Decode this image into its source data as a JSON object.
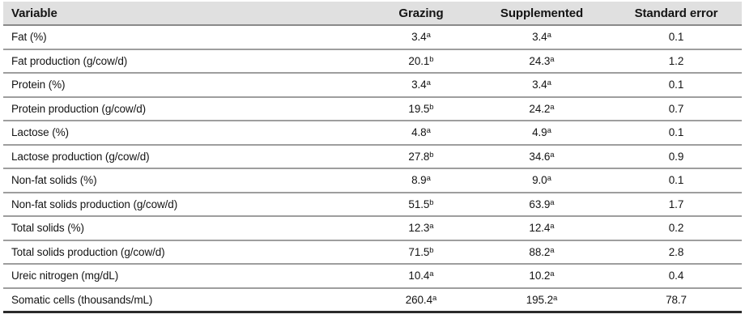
{
  "colors": {
    "header_background": "#e0e0e0",
    "header_border": "#8a8a8a",
    "row_border": "#9e9e9e",
    "table_bottom_border": "#2b2b2b",
    "text": "#141414"
  },
  "chart_data": {
    "type": "table",
    "columns": [
      "Variable",
      "Grazing",
      "Supplemented",
      "Standard error"
    ],
    "rows": [
      {
        "variable": "Fat (%)",
        "grazing": "3.4",
        "grazing_note": "a",
        "supplemented": "3.4",
        "supplemented_note": "a",
        "standard_error": "0.1"
      },
      {
        "variable": "Fat production (g/cow/d)",
        "grazing": "20.1",
        "grazing_note": "b",
        "supplemented": "24.3",
        "supplemented_note": "a",
        "standard_error": "1.2"
      },
      {
        "variable": "Protein (%)",
        "grazing": "3.4",
        "grazing_note": "a",
        "supplemented": "3.4",
        "supplemented_note": "a",
        "standard_error": "0.1"
      },
      {
        "variable": "Protein production (g/cow/d)",
        "grazing": "19.5",
        "grazing_note": "b",
        "supplemented": "24.2",
        "supplemented_note": "a",
        "standard_error": "0.7"
      },
      {
        "variable": "Lactose (%)",
        "grazing": "4.8",
        "grazing_note": "a",
        "supplemented": "4.9",
        "supplemented_note": "a",
        "standard_error": "0.1"
      },
      {
        "variable": "Lactose production (g/cow/d)",
        "grazing": "27.8",
        "grazing_note": "b",
        "supplemented": "34.6",
        "supplemented_note": "a",
        "standard_error": "0.9"
      },
      {
        "variable": "Non-fat solids (%)",
        "grazing": "8.9",
        "grazing_note": "a",
        "supplemented": "9.0",
        "supplemented_note": "a",
        "standard_error": "0.1"
      },
      {
        "variable": "Non-fat solids production (g/cow/d)",
        "grazing": "51.5",
        "grazing_note": "b",
        "supplemented": "63.9",
        "supplemented_note": "a",
        "standard_error": "1.7"
      },
      {
        "variable": "Total solids (%)",
        "grazing": "12.3",
        "grazing_note": "a",
        "supplemented": "12.4",
        "supplemented_note": "a",
        "standard_error": "0.2"
      },
      {
        "variable": "Total solids production (g/cow/d)",
        "grazing": "71.5",
        "grazing_note": "b",
        "supplemented": "88.2",
        "supplemented_note": "a",
        "standard_error": "2.8"
      },
      {
        "variable": "Ureic nitrogen (mg/dL)",
        "grazing": "10.4",
        "grazing_note": "a",
        "supplemented": "10.2",
        "supplemented_note": "a",
        "standard_error": "0.4"
      },
      {
        "variable": "Somatic cells (thousands/mL)",
        "grazing": "260.4",
        "grazing_note": "a",
        "supplemented": "195.2",
        "supplemented_note": "a",
        "standard_error": "78.7"
      }
    ]
  }
}
